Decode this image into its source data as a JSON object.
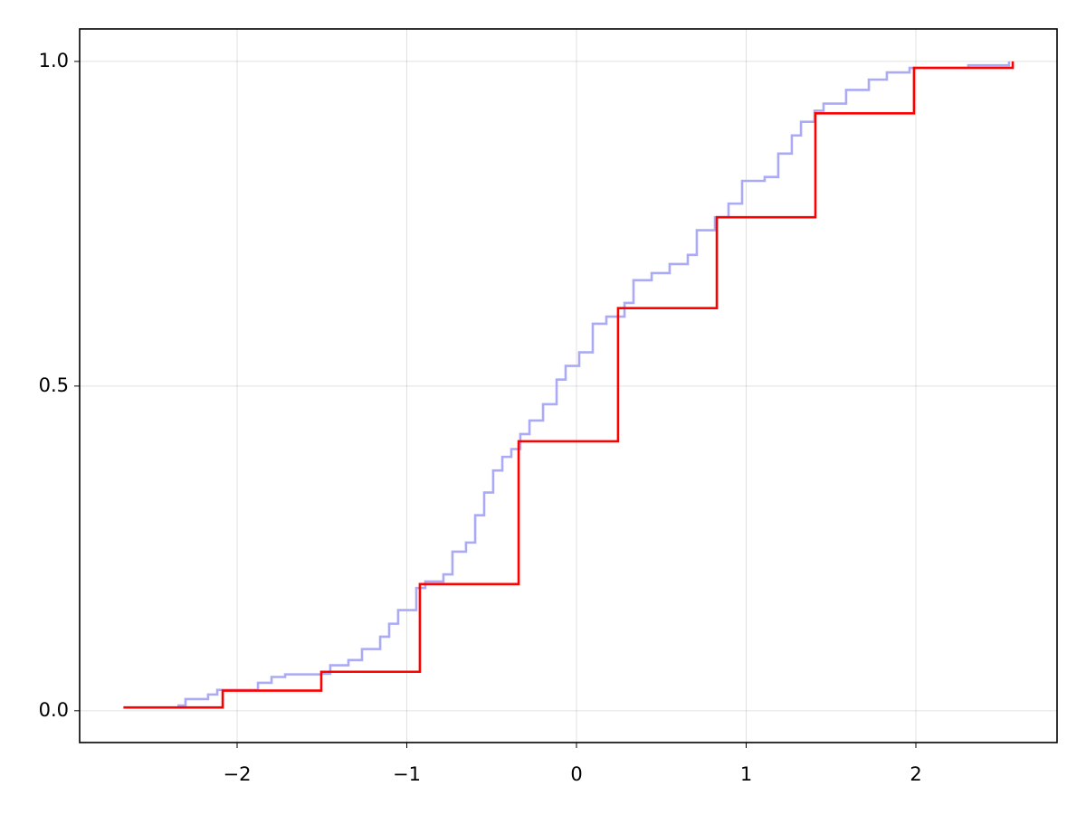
{
  "chart_data": {
    "type": "step",
    "xlim": [
      -2.928,
      2.832
    ],
    "ylim": [
      -0.049,
      1.05
    ],
    "xticks": [
      {
        "value": -2,
        "label": "−2"
      },
      {
        "value": -1,
        "label": "−1"
      },
      0,
      1,
      2
    ],
    "yticks": [
      {
        "value": 0,
        "label": "0.0"
      },
      {
        "value": 0.5,
        "label": "0.5"
      },
      {
        "value": 1,
        "label": "1.0"
      }
    ],
    "grid": true,
    "series": [
      {
        "color": "#aaaaf6",
        "x": [
          -2.352,
          -2.304,
          -2.171,
          -2.117,
          -1.877,
          -1.797,
          -1.717,
          -1.504,
          -1.451,
          -1.344,
          -1.264,
          -1.157,
          -1.104,
          -1.051,
          -0.944,
          -0.891,
          -0.784,
          -0.731,
          -0.651,
          -0.597,
          -0.544,
          -0.491,
          -0.437,
          -0.384,
          -0.331,
          -0.277,
          -0.197,
          -0.117,
          -0.064,
          0.016,
          0.096,
          0.176,
          0.283,
          0.336,
          0.443,
          0.549,
          0.656,
          0.709,
          0.816,
          0.896,
          0.976,
          1.109,
          1.189,
          1.269,
          1.323,
          1.403,
          1.456,
          1.589,
          1.723,
          1.829,
          1.963,
          2.309,
          2.549
        ],
        "values": [
          0.008,
          0.018,
          0.025,
          0.032,
          0.043,
          0.052,
          0.056,
          0.057,
          0.07,
          0.078,
          0.095,
          0.114,
          0.134,
          0.155,
          0.189,
          0.199,
          0.21,
          0.245,
          0.259,
          0.301,
          0.336,
          0.37,
          0.391,
          0.403,
          0.426,
          0.447,
          0.472,
          0.51,
          0.531,
          0.552,
          0.596,
          0.607,
          0.628,
          0.663,
          0.674,
          0.688,
          0.702,
          0.74,
          0.76,
          0.781,
          0.816,
          0.822,
          0.858,
          0.886,
          0.907,
          0.924,
          0.935,
          0.956,
          0.972,
          0.983,
          0.99,
          0.994,
          1.0
        ]
      },
      {
        "color": "#ff0000",
        "x": [
          -2.67,
          -2.085,
          -1.504,
          -0.923,
          -0.341,
          0.245,
          0.827,
          1.408,
          1.989,
          2.571
        ],
        "values": [
          0.005,
          0.031,
          0.06,
          0.195,
          0.415,
          0.62,
          0.76,
          0.92,
          0.99,
          1.0
        ]
      }
    ]
  }
}
